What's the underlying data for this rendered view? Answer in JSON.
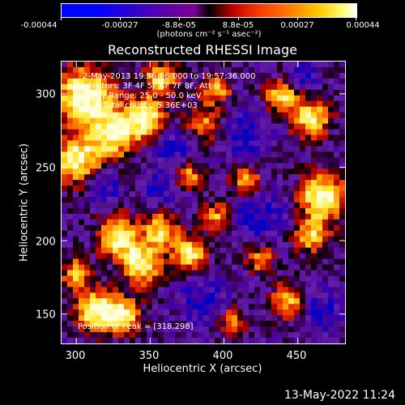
{
  "colorbar": {
    "labels": [
      "-0.00044",
      "-0.00027",
      "-8.8e-05",
      "8.8e-05",
      "0.00027",
      "0.00044"
    ],
    "unit": "(photons cm⁻² s⁻¹ asec⁻²)",
    "colors": [
      "#0000ff",
      "#5a00a8",
      "#000000",
      "#c00000",
      "#ff8000",
      "#ffffff"
    ]
  },
  "chart_data": {
    "type": "heatmap",
    "title": "Reconstructed RHESSI Image",
    "xlabel": "Heliocentric X (arcsec)",
    "ylabel": "Heliocentric Y (arcsec)",
    "xlim": [
      290,
      482
    ],
    "ylim": [
      130,
      322
    ],
    "x_ticks": [
      "300",
      "350",
      "400",
      "450"
    ],
    "y_ticks": [
      "150",
      "200",
      "250",
      "300"
    ],
    "x_tick_values": [
      300,
      350,
      400,
      450
    ],
    "y_tick_values": [
      150,
      200,
      250,
      300
    ],
    "annotations": [
      "2-May-2013 19:56:08.000 to 19:57:36.000",
      "Detectors: 3F 4F 5F 6F 7F 8F, Att 0",
      "Energy Range: 25.0 - 50.0 keV",
      "Clean    Total counts: 5.36E+03",
      "Position of Peak = [318,298]"
    ],
    "peak": [
      318,
      298
    ]
  },
  "footer": {
    "timestamp": "13-May-2022 11:24"
  }
}
